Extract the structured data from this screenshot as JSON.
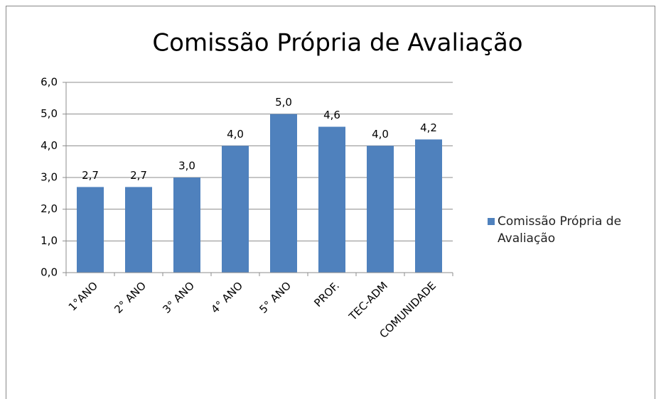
{
  "chart_data": {
    "type": "bar",
    "title": "Comissão Própria de Avaliação",
    "categories": [
      "1°ANO",
      "2° ANO",
      "3° ANO",
      "4° ANO",
      "5° ANO",
      "PROF.",
      "TEC-ADM",
      "COMUNIDADE"
    ],
    "series": [
      {
        "name": "Comissão Própria de Avaliação",
        "color": "#4f81bd",
        "values": [
          2.7,
          2.7,
          3.0,
          4.0,
          5.0,
          4.6,
          4.0,
          4.2
        ],
        "value_labels": [
          "2,7",
          "2,7",
          "3,0",
          "4,0",
          "5,0",
          "4,6",
          "4,0",
          "4,2"
        ]
      }
    ],
    "ylim": [
      0,
      6
    ],
    "yticks": [
      {
        "value": 0,
        "label": "0,0"
      },
      {
        "value": 1,
        "label": "1,0"
      },
      {
        "value": 2,
        "label": "2,0"
      },
      {
        "value": 3,
        "label": "3,0"
      },
      {
        "value": 4,
        "label": "4,0"
      },
      {
        "value": 5,
        "label": "5,0"
      },
      {
        "value": 6,
        "label": "6,0"
      }
    ],
    "grid": true,
    "legend": "right"
  }
}
